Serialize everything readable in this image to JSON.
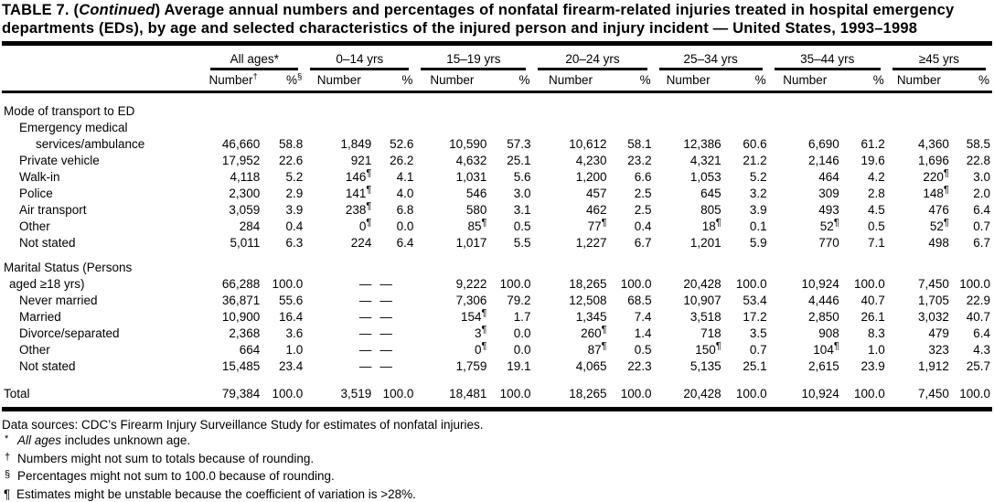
{
  "title": {
    "part1": "TABLE 7. (",
    "continued": "Continued",
    "part2": ") Average annual numbers and percentages of nonfatal firearm-related injuries treated in hospital emergency",
    "line2": "departments (EDs), by age and selected characteristics of the injured person and injury incident — United States, 1993–1998"
  },
  "table": {
    "groups": [
      {
        "label": "All ages*",
        "number": "Number",
        "number_sup": "†",
        "pct": "%",
        "pct_sup": "§"
      },
      {
        "label": "0–14 yrs",
        "number": "Number",
        "pct": "%"
      },
      {
        "label": "15–19 yrs",
        "number": "Number",
        "pct": "%"
      },
      {
        "label": "20–24 yrs",
        "number": "Number",
        "pct": "%"
      },
      {
        "label": "25–34 yrs",
        "number": "Number",
        "pct": "%"
      },
      {
        "label": "35–44 yrs",
        "number": "Number",
        "pct": "%"
      },
      {
        "label": "≥45 yrs",
        "number": "Number",
        "pct": "%"
      }
    ],
    "sections": [
      {
        "heading_lines": [
          "Mode of transport to ED"
        ],
        "rows": [
          {
            "label_lines": [
              "Emergency medical",
              "services/ambulance"
            ],
            "cells": [
              "46,660",
              "58.8",
              "1,849",
              "52.6",
              "10,590",
              "57.3",
              "10,612",
              "58.1",
              "12,386",
              "60.6",
              "6,690",
              "61.2",
              "4,360",
              "58.5"
            ]
          },
          {
            "label_lines": [
              "Private vehicle"
            ],
            "cells": [
              "17,952",
              "22.6",
              "921",
              "26.2",
              "4,632",
              "25.1",
              "4,230",
              "23.2",
              "4,321",
              "21.2",
              "2,146",
              "19.6",
              "1,696",
              "22.8"
            ]
          },
          {
            "label_lines": [
              "Walk-in"
            ],
            "cells": [
              "4,118",
              "5.2",
              "146¶",
              "4.1",
              "1,031",
              "5.6",
              "1,200",
              "6.6",
              "1,053",
              "5.2",
              "464",
              "4.2",
              "220¶",
              "3.0"
            ]
          },
          {
            "label_lines": [
              "Police"
            ],
            "cells": [
              "2,300",
              "2.9",
              "141¶",
              "4.0",
              "546",
              "3.0",
              "457",
              "2.5",
              "645",
              "3.2",
              "309",
              "2.8",
              "148¶",
              "2.0"
            ]
          },
          {
            "label_lines": [
              "Air transport"
            ],
            "cells": [
              "3,059",
              "3.9",
              "238¶",
              "6.8",
              "580",
              "3.1",
              "462",
              "2.5",
              "805",
              "3.9",
              "493",
              "4.5",
              "476",
              "6.4"
            ]
          },
          {
            "label_lines": [
              "Other"
            ],
            "cells": [
              "284",
              "0.4",
              "0¶",
              "0.0",
              "85¶",
              "0.5",
              "77¶",
              "0.4",
              "18¶",
              "0.1",
              "52¶",
              "0.5",
              "52¶",
              "0.7"
            ]
          },
          {
            "label_lines": [
              "Not stated"
            ],
            "cells": [
              "5,011",
              "6.3",
              "224",
              "6.4",
              "1,017",
              "5.5",
              "1,227",
              "6.7",
              "1,201",
              "5.9",
              "770",
              "7.1",
              "498",
              "6.7"
            ]
          }
        ]
      },
      {
        "heading_lines": [
          "Marital Status (Persons",
          "aged ≥18 yrs)"
        ],
        "heading_cells": [
          "66,288",
          "100.0",
          "—",
          "—",
          "9,222",
          "100.0",
          "18,265",
          "100.0",
          "20,428",
          "100.0",
          "10,924",
          "100.0",
          "7,450",
          "100.0"
        ],
        "rows": [
          {
            "label_lines": [
              "Never married"
            ],
            "cells": [
              "36,871",
              "55.6",
              "—",
              "—",
              "7,306",
              "79.2",
              "12,508",
              "68.5",
              "10,907",
              "53.4",
              "4,446",
              "40.7",
              "1,705",
              "22.9"
            ]
          },
          {
            "label_lines": [
              "Married"
            ],
            "cells": [
              "10,900",
              "16.4",
              "—",
              "—",
              "154¶",
              "1.7",
              "1,345",
              "7.4",
              "3,518",
              "17.2",
              "2,850",
              "26.1",
              "3,032",
              "40.7"
            ]
          },
          {
            "label_lines": [
              "Divorce/separated"
            ],
            "cells": [
              "2,368",
              "3.6",
              "—",
              "—",
              "3¶",
              "0.0",
              "260¶",
              "1.4",
              "718",
              "3.5",
              "908",
              "8.3",
              "479",
              "6.4"
            ]
          },
          {
            "label_lines": [
              "Other"
            ],
            "cells": [
              "664",
              "1.0",
              "—",
              "—",
              "0¶",
              "0.0",
              "87¶",
              "0.5",
              "150¶",
              "0.7",
              "104¶",
              "1.0",
              "323",
              "4.3"
            ]
          },
          {
            "label_lines": [
              "Not stated"
            ],
            "cells": [
              "15,485",
              "23.4",
              "—",
              "—",
              "1,759",
              "19.1",
              "4,065",
              "22.3",
              "5,135",
              "25.1",
              "2,615",
              "23.9",
              "1,912",
              "25.7"
            ]
          }
        ]
      }
    ],
    "total": {
      "label": "Total",
      "cells": [
        "79,384",
        "100.0",
        "3,519",
        "100.0",
        "18,481",
        "100.0",
        "18,265",
        "100.0",
        "20,428",
        "100.0",
        "10,924",
        "100.0",
        "7,450",
        "100.0"
      ]
    }
  },
  "footnotes": [
    {
      "marker": "",
      "text": "Data sources: CDC’s Firearm Injury Surveillance Study for estimates of nonfatal injuries."
    },
    {
      "marker": "*",
      "italic": "All ages",
      "text": " includes unknown age."
    },
    {
      "marker": "†",
      "text": "Numbers might not sum to totals because of rounding."
    },
    {
      "marker": "§",
      "text": "Percentages might not sum to 100.0 because of rounding."
    },
    {
      "marker": "¶",
      "text": "Estimates might be unstable because the coefficient of variation is >28%."
    }
  ]
}
